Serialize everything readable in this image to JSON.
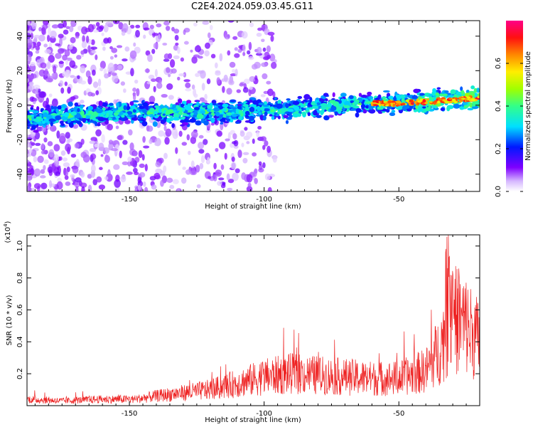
{
  "title": "C2E4.2024.059.03.45.G11",
  "chart_data": [
    {
      "type": "heatmap",
      "title": "C2E4.2024.059.03.45.G11",
      "xlabel": "Height of straight line (km)",
      "ylabel": "Frequency (Hz)",
      "xlim": [
        -188,
        -20
      ],
      "ylim": [
        -50,
        49
      ],
      "x_ticks": [
        "-150",
        "-100",
        "-50"
      ],
      "y_ticks": [
        "-40",
        "-20",
        "0",
        "20",
        "40"
      ],
      "colorbar": {
        "label": "Normalized spectral amplitude",
        "range": [
          0.0,
          0.8
        ],
        "ticks": [
          "0.0",
          "0.2",
          "0.4",
          "0.6"
        ]
      },
      "ridge": {
        "x": [
          -188,
          -170,
          -150,
          -130,
          -110,
          -100,
          -90,
          -75,
          -60,
          -50,
          -40,
          -30,
          -20
        ],
        "frequency": [
          -8,
          -6,
          -4,
          -4,
          -4,
          -3,
          -2,
          0,
          1,
          1,
          2,
          3,
          4
        ]
      }
    },
    {
      "type": "line",
      "xlabel": "Height of straight line (km)",
      "ylabel": "SNR (10 * v/v)",
      "scale_label": "(x10",
      "scale_exp": "4",
      "scale_close": ")",
      "xlim": [
        -188,
        -20
      ],
      "ylim": [
        0.0,
        1.07
      ],
      "x_ticks": [
        "-150",
        "-100",
        "-50"
      ],
      "y_ticks": [
        "0.2",
        "0.4",
        "0.6",
        "0.8",
        "1.0"
      ],
      "series": [
        {
          "color": "#ee2222",
          "x": [
            -188,
            -175,
            -160,
            -148,
            -140,
            -130,
            -120,
            -110,
            -100,
            -90,
            -80,
            -70,
            -60,
            -50,
            -40,
            -35,
            -30,
            -25,
            -20
          ],
          "values": [
            0.04,
            0.03,
            0.04,
            0.04,
            0.06,
            0.08,
            0.1,
            0.14,
            0.18,
            0.2,
            0.19,
            0.18,
            0.17,
            0.17,
            0.22,
            0.35,
            0.55,
            0.5,
            0.4
          ]
        }
      ]
    }
  ]
}
